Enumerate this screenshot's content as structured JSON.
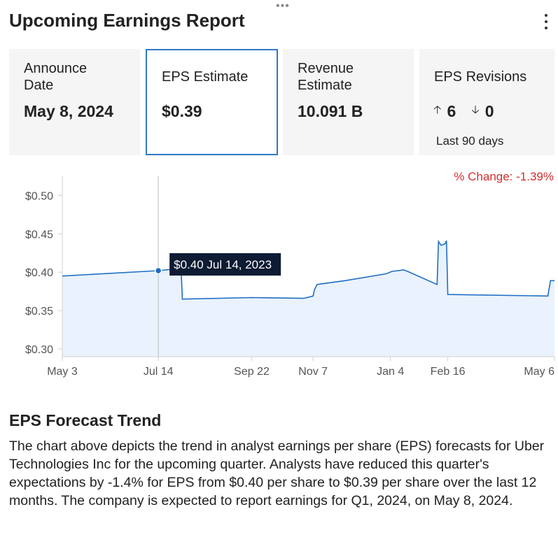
{
  "widget": {
    "title": "Upcoming Earnings Report",
    "drag_handle_glyph": "•••",
    "menu_icon": "more-vertical-icon"
  },
  "cards": {
    "announce": {
      "label_line1": "Announce",
      "label_line2": "Date",
      "value": "May 8, 2024"
    },
    "eps": {
      "label": "EPS Estimate",
      "value": "$0.39"
    },
    "revenue": {
      "label_line1": "Revenue",
      "label_line2": "Estimate",
      "value": "10.091 B"
    },
    "revisions": {
      "label": "EPS Revisions",
      "up_icon": "arrow-up-icon",
      "up": "6",
      "down_icon": "arrow-down-icon",
      "down": "0",
      "period": "Last 90 days"
    }
  },
  "colors": {
    "accent": "#2f79c8",
    "line": "#1f6fc5",
    "fill": "#e9f2fd",
    "negative": "#d32f2f",
    "tooltip_bg": "#0d1b33"
  },
  "chart_data": {
    "type": "area",
    "pct_change_label": "% Change: -1.39%",
    "x_tick_labels": [
      "May 3",
      "Jul 14",
      "Sep 22",
      "Nov 7",
      "Jan 4",
      "Feb 16",
      "May 6"
    ],
    "x_tick_dates": [
      "2023-05-03",
      "2023-07-14",
      "2023-09-22",
      "2023-11-07",
      "2024-01-04",
      "2024-02-16",
      "2024-05-06"
    ],
    "y_tick_labels": [
      "$0.30",
      "$0.35",
      "$0.40",
      "$0.45",
      "$0.50"
    ],
    "y_ticks": [
      0.3,
      0.35,
      0.4,
      0.45,
      0.5
    ],
    "ylim": [
      0.29,
      0.525
    ],
    "xlim": [
      "2023-05-03",
      "2024-05-06"
    ],
    "grid": false,
    "series": [
      {
        "points": [
          [
            "2023-05-03",
            0.395
          ],
          [
            "2023-07-14",
            0.402
          ],
          [
            "2023-07-31",
            0.405
          ],
          [
            "2023-08-01",
            0.365
          ],
          [
            "2023-09-22",
            0.367
          ],
          [
            "2023-10-31",
            0.366
          ],
          [
            "2023-11-07",
            0.369
          ],
          [
            "2023-11-08",
            0.377
          ],
          [
            "2023-11-10",
            0.384
          ],
          [
            "2023-11-14",
            0.385
          ],
          [
            "2023-12-01",
            0.389
          ],
          [
            "2024-01-01",
            0.398
          ],
          [
            "2024-01-05",
            0.401
          ],
          [
            "2024-01-14",
            0.403
          ],
          [
            "2024-01-17",
            0.401
          ],
          [
            "2024-02-08",
            0.384
          ],
          [
            "2024-02-09",
            0.44
          ],
          [
            "2024-02-11",
            0.435
          ],
          [
            "2024-02-14",
            0.437
          ],
          [
            "2024-02-15",
            0.441
          ],
          [
            "2024-02-16",
            0.371
          ],
          [
            "2024-05-01",
            0.369
          ],
          [
            "2024-05-03",
            0.389
          ],
          [
            "2024-05-06",
            0.389
          ]
        ]
      }
    ],
    "tooltip": {
      "date": "2023-07-14",
      "value": 0.402,
      "value_label": "$0.40",
      "date_label": "Jul 14, 2023"
    }
  },
  "trend": {
    "title": "EPS Forecast Trend",
    "text": "The chart above depicts the trend in analyst earnings per share (EPS) forecasts for Uber Technologies Inc for the upcoming quarter. Analysts have reduced this quarter's expectations by -1.4% for EPS from $0.40 per share to $0.39 per share over the last 12 months. The company is expected to report earnings for Q1, 2024, on May 8, 2024."
  }
}
